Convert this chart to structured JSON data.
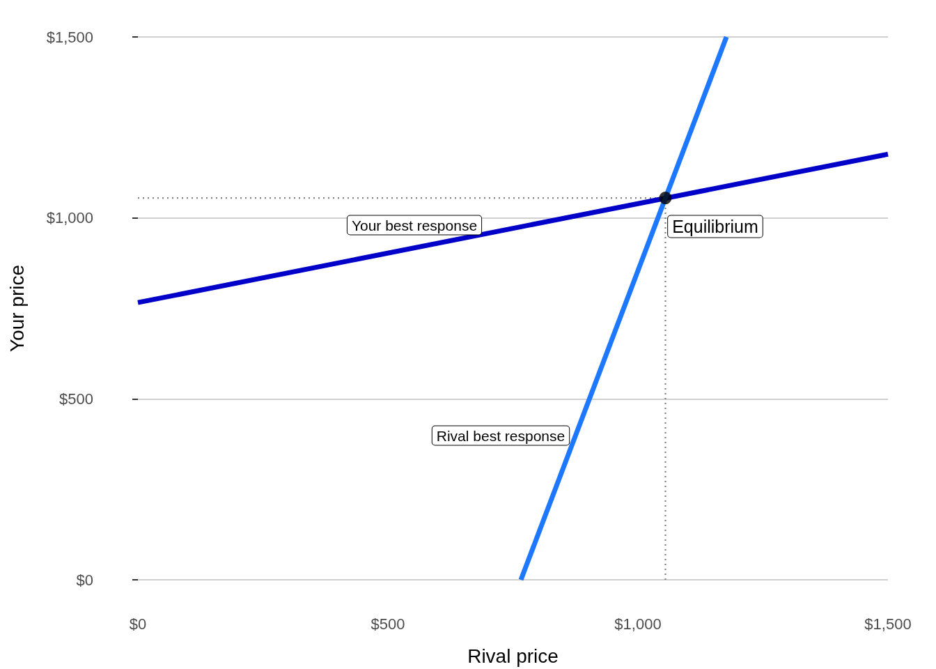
{
  "chart_data": {
    "type": "line",
    "xlabel": "Rival price",
    "ylabel": "Your price",
    "xlim": [
      0,
      1500
    ],
    "ylim": [
      0,
      1500
    ],
    "xticks": [
      {
        "value": 0,
        "label": "$0"
      },
      {
        "value": 500,
        "label": "$500"
      },
      {
        "value": 1000,
        "label": "$1,000"
      },
      {
        "value": 1500,
        "label": "$1,500"
      }
    ],
    "yticks": [
      {
        "value": 0,
        "label": "$0"
      },
      {
        "value": 500,
        "label": "$500"
      },
      {
        "value": 1000,
        "label": "$1,000"
      },
      {
        "value": 1500,
        "label": "$1,500"
      }
    ],
    "grid": "y",
    "series": [
      {
        "color": "#7f7f7f",
        "line_style": "dotted",
        "x": [
          0,
          1055
        ],
        "values": [
          1055,
          1055
        ]
      },
      {
        "color": "#7f7f7f",
        "line_style": "dotted",
        "x": [
          1055,
          1055
        ],
        "values": [
          0,
          1055
        ]
      },
      {
        "color": "#0000c8",
        "line_style": "solid",
        "x": [
          0,
          1500
        ],
        "values": [
          766,
          1176
        ]
      },
      {
        "color": "#1e78ff",
        "line_style": "solid",
        "x": [
          766,
          1177
        ],
        "values": [
          0,
          1500
        ]
      },
      {
        "type": "scatter",
        "color": "#000000",
        "marker": "circle",
        "x": [
          1055
        ],
        "values": [
          1055
        ]
      }
    ],
    "annotations": [
      "Your best response",
      "Rival best response",
      "Equilibrium"
    ]
  }
}
